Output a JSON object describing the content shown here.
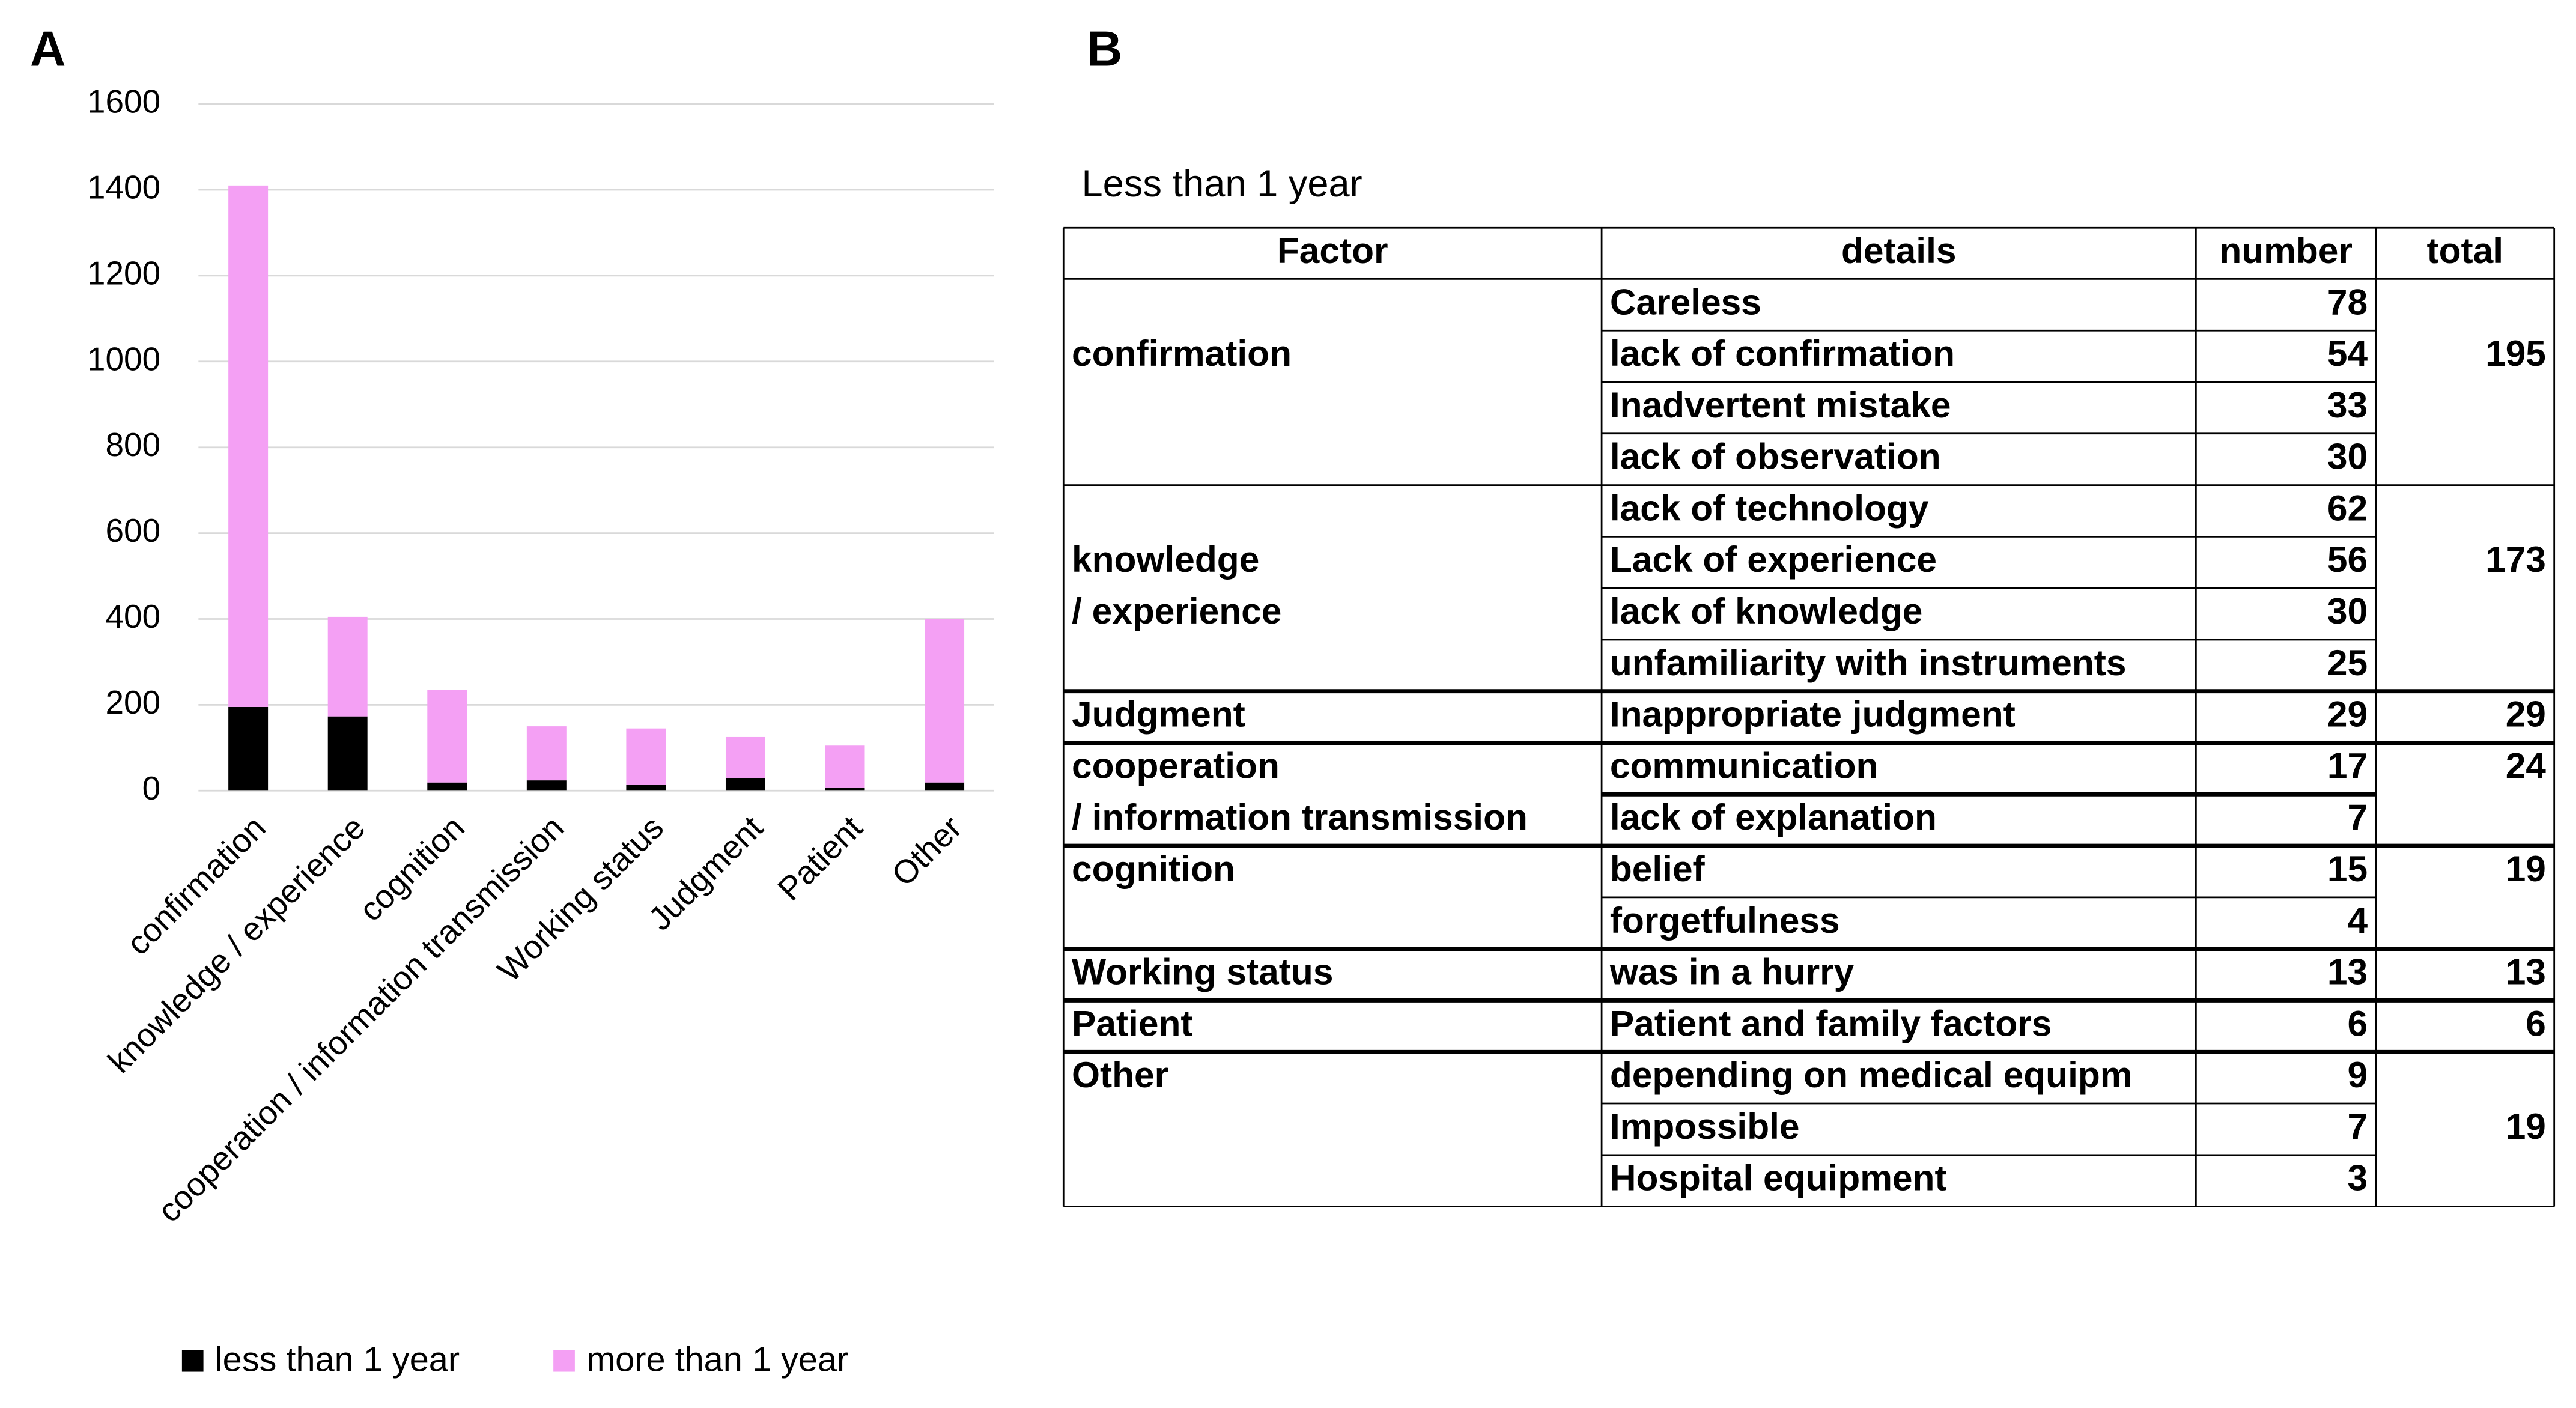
{
  "panel_labels": [
    "A",
    "B"
  ],
  "chart_data": {
    "type": "stacked_bar",
    "categories": [
      "confirmation",
      "knowledge / experience",
      "cognition",
      "cooperation / information transmission",
      "Working status",
      "Judgment",
      "Patient",
      "Other"
    ],
    "series": [
      {
        "name": "less than 1 year",
        "color": "#000000",
        "values": [
          195,
          173,
          19,
          24,
          13,
          29,
          6,
          19
        ]
      },
      {
        "name": "more than 1 year",
        "color": "#f4a0f4",
        "values": [
          1215,
          232,
          216,
          126,
          132,
          96,
          99,
          381
        ]
      }
    ],
    "ylim": [
      0,
      1600
    ],
    "yticks": [
      0,
      200,
      400,
      600,
      800,
      1000,
      1200,
      1400,
      1600
    ],
    "grid": true,
    "legend": "bottom"
  },
  "table": {
    "title": "Less than 1 year",
    "header": [
      "Factor",
      "details",
      "number",
      "total"
    ],
    "groups": [
      {
        "factor": [
          "confirmation"
        ],
        "total": 195,
        "details": [
          {
            "detail": "Careless",
            "number": 78
          },
          {
            "detail": "lack of confirmation",
            "number": 54
          },
          {
            "detail": "Inadvertent mistake",
            "number": 33
          },
          {
            "detail": "lack of observation",
            "number": 30
          }
        ]
      },
      {
        "factor": [
          "knowledge",
          "/ experience"
        ],
        "total": 173,
        "details": [
          {
            "detail": "lack of technology",
            "number": 62
          },
          {
            "detail": "Lack of experience",
            "number": 56
          },
          {
            "detail": "lack of knowledge",
            "number": 30
          },
          {
            "detail": "unfamiliarity with instruments",
            "number": 25
          }
        ]
      },
      {
        "factor": [
          "Judgment"
        ],
        "total": 29,
        "details": [
          {
            "detail": "Inappropriate judgment",
            "number": 29
          }
        ]
      },
      {
        "factor": [
          "cooperation",
          "/ information transmission"
        ],
        "total": 24,
        "details": [
          {
            "detail": "communication",
            "number": 17
          },
          {
            "detail": "lack of explanation",
            "number": 7
          }
        ]
      },
      {
        "factor": [
          "cognition"
        ],
        "total": 19,
        "details": [
          {
            "detail": "belief",
            "number": 15
          },
          {
            "detail": "forgetfulness",
            "number": 4
          }
        ]
      },
      {
        "factor": [
          "Working status"
        ],
        "total": 13,
        "details": [
          {
            "detail": "was in a hurry",
            "number": 13
          }
        ]
      },
      {
        "factor": [
          "Patient"
        ],
        "total": 6,
        "details": [
          {
            "detail": "Patient and family factors",
            "number": 6
          }
        ]
      },
      {
        "factor": [
          "Other"
        ],
        "total": 19,
        "details": [
          {
            "detail": "depending on medical equipm",
            "number": 9
          },
          {
            "detail": "Impossible",
            "number": 7
          },
          {
            "detail": "Hospital equipment",
            "number": 3
          }
        ]
      }
    ]
  }
}
